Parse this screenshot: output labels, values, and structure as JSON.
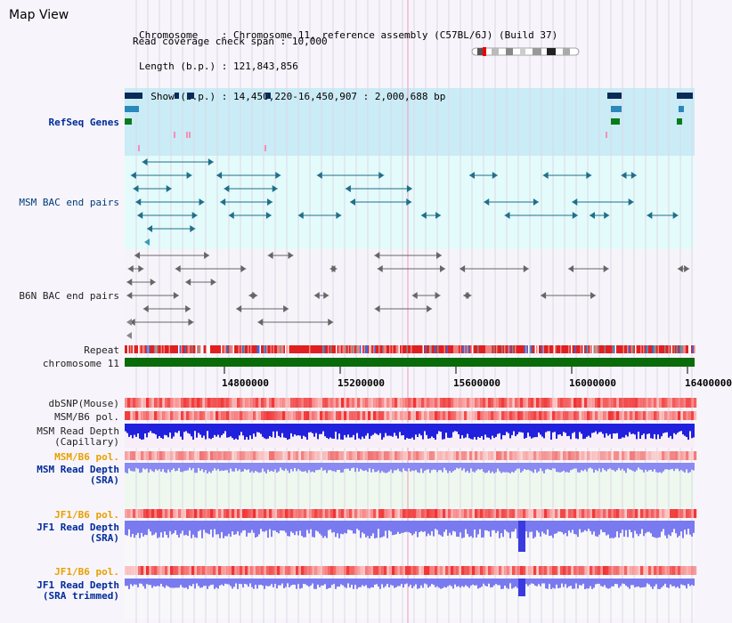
{
  "title": "Map View",
  "info": {
    "chromosome_label": "Chromosome",
    "chromosome_value": "Chromosome 11, reference assembly (C57BL/6J) (Build 37)",
    "length_label": "Length (b.p.)",
    "length_value": "121,843,856",
    "show_label": "Show (b.p.)",
    "show_value": "14,450,220-16,450,907 : 2,000,688 bp",
    "span_label": "Read coverage check span",
    "span_value": "10,000"
  },
  "tracks": {
    "refseq": "RefSeq Genes",
    "msm_bac": "MSM BAC end pairs",
    "b6n_bac": "B6N BAC end pairs",
    "repeat": "Repeat",
    "chromosome": "chromosome 11",
    "dbsnp": "dbSNP(Mouse)",
    "msm_b6_pol_1": "MSM/B6 pol.",
    "msm_depth_cap_1": "MSM Read Depth",
    "msm_depth_cap_2": "(Capillary)",
    "msm_b6_pol_2": "MSM/B6 pol.",
    "msm_depth_sra_1": "MSM Read Depth",
    "msm_depth_sra_2": "(SRA)",
    "jf1_pol_1": "JF1/B6 pol.",
    "jf1_depth_sra_1": "JF1 Read Depth",
    "jf1_depth_sra_2": "(SRA)",
    "jf1_pol_2": "JF1/B6 pol.",
    "jf1_depth_trim_1": "JF1 Read Depth",
    "jf1_depth_trim_2": "(SRA trimmed)"
  },
  "axis_ticks": [
    "14800000",
    "15200000",
    "15600000",
    "16000000",
    "16400000"
  ],
  "colors": {
    "refseq_band": "#c9ecf6",
    "msm_band": "#e4fbfb",
    "b6n_band": "#f5f1f8",
    "chromosome_bar": "#0a6b0a",
    "depth_blue": "#2222dd",
    "depth_light": "#8888f0",
    "pol_red": "#f03030"
  }
}
